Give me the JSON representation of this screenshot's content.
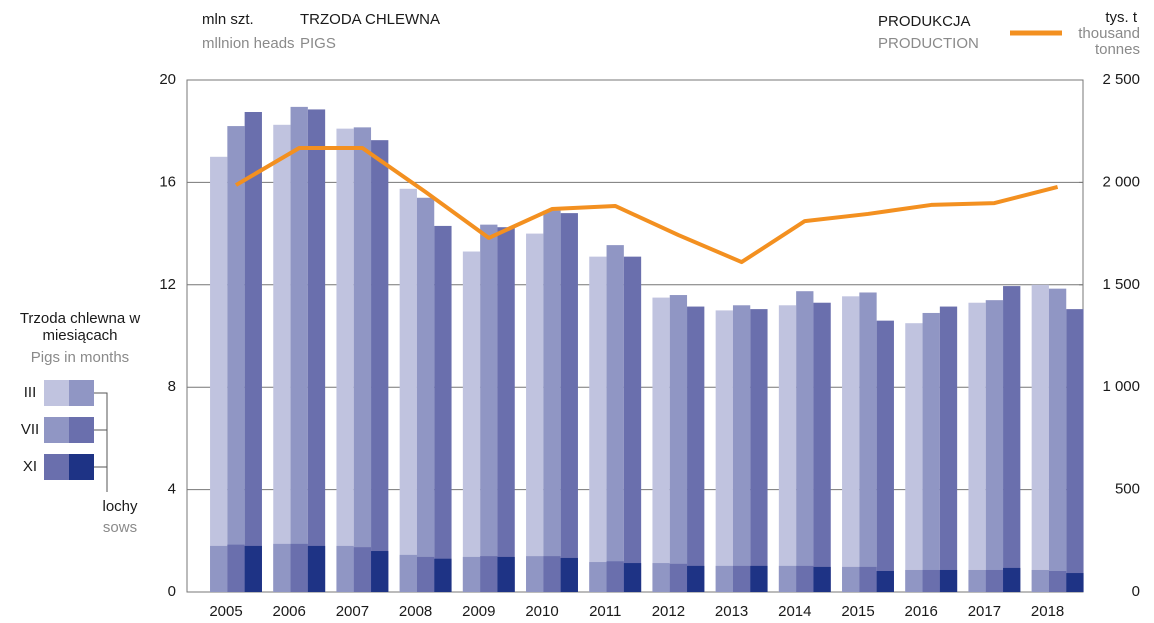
{
  "chart_data": {
    "type": "bar",
    "title": "TRZODA CHLEWNA",
    "subtitle": "PIGS",
    "y_label": "mln szt.",
    "y_label_en": "mllnion heads",
    "y2_label": "tys. t",
    "y2_label_en": "thousand tonnes",
    "legend_title": "Trzoda chlewna w miesiącach",
    "legend_title_en": "Pigs in months",
    "sows_label": "lochy",
    "sows_label_en": "sows",
    "categories": [
      "2005",
      "2006",
      "2007",
      "2008",
      "2009",
      "2010",
      "2011",
      "2012",
      "2013",
      "2014",
      "2015",
      "2016",
      "2017",
      "2018"
    ],
    "series": [
      {
        "name": "III",
        "color": "#c0c3df",
        "sows_color": "#9096c4",
        "values": [
          17.0,
          18.25,
          18.1,
          15.75,
          13.3,
          14.0,
          13.1,
          11.5,
          11.0,
          11.2,
          11.55,
          10.5,
          11.3,
          12.0
        ],
        "sows": [
          1.8,
          1.88,
          1.8,
          1.45,
          1.37,
          1.4,
          1.17,
          1.13,
          1.02,
          1.02,
          0.98,
          0.86,
          0.86,
          0.86
        ]
      },
      {
        "name": "VII",
        "color": "#9096c4",
        "sows_color": "#6a6fad",
        "values": [
          18.2,
          18.95,
          18.15,
          15.4,
          14.35,
          14.9,
          13.55,
          11.6,
          11.2,
          11.75,
          11.7,
          10.9,
          11.4,
          11.85
        ],
        "sows": [
          1.85,
          1.88,
          1.75,
          1.37,
          1.4,
          1.4,
          1.2,
          1.1,
          1.02,
          1.02,
          0.98,
          0.86,
          0.86,
          0.82
        ]
      },
      {
        "name": "XI",
        "color": "#6a6fad",
        "sows_color": "#1e3385",
        "values": [
          18.75,
          18.85,
          17.65,
          14.3,
          14.25,
          14.8,
          13.1,
          11.15,
          11.05,
          11.3,
          10.6,
          11.15,
          11.95,
          11.05
        ],
        "sows": [
          1.8,
          1.8,
          1.6,
          1.3,
          1.37,
          1.33,
          1.13,
          1.02,
          1.02,
          0.98,
          0.82,
          0.86,
          0.94,
          0.74
        ]
      }
    ],
    "production": {
      "name": "PRODUKCJA",
      "name_en": "PRODUCTION",
      "color": "#f39020",
      "axis": "y2",
      "values": [
        1987,
        2168,
        2168,
        1953,
        1729,
        1870,
        1885,
        1743,
        1611,
        1811,
        1846,
        1890,
        1899,
        1978
      ]
    },
    "ylim": [
      0,
      20
    ],
    "yticks": [
      0,
      4,
      8,
      12,
      16,
      20
    ],
    "y2lim": [
      0,
      2500
    ],
    "y2ticks": [
      0,
      500,
      {
        "value": 1000,
        "label": "1 000"
      },
      {
        "value": 1500,
        "label": "1 500"
      },
      {
        "value": 2000,
        "label": "2 000"
      },
      {
        "value": 2500,
        "label": "2 500"
      }
    ],
    "grid": true
  }
}
